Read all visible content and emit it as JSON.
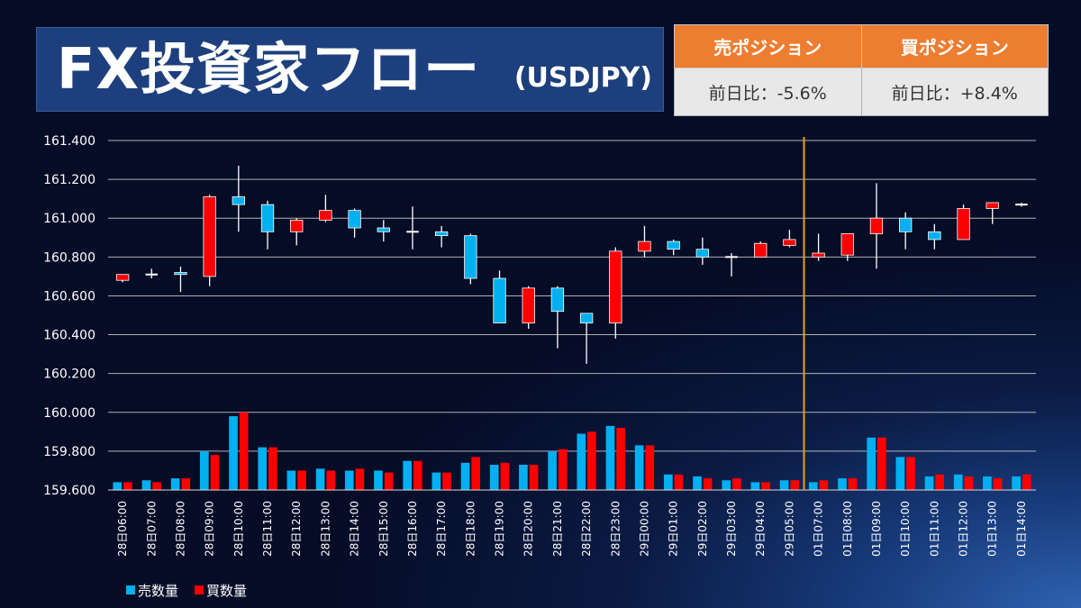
{
  "title": {
    "main": "FX投資家フロー",
    "sub": "(USDJPY)"
  },
  "position_table": {
    "headers": [
      "売ポジション",
      "買ポジション"
    ],
    "values": [
      "前日比：-5.6%",
      "前日比：+8.4%"
    ]
  },
  "colors": {
    "up": "#ff0000",
    "down": "#00b0f0",
    "sell_volume": "#00b0f0",
    "buy_volume": "#ff0000",
    "divider": "#e3a412",
    "grid": "#d9d9d9",
    "header_bg": "#ed7d31"
  },
  "chart_data": {
    "type": "candlestick+bar",
    "ylim": [
      159.6,
      161.4
    ],
    "yticks": [
      "161.400",
      "161.200",
      "161.000",
      "160.800",
      "160.600",
      "160.400",
      "160.200",
      "160.000",
      "159.800",
      "159.600"
    ],
    "grid": true,
    "legend_position": "bottom-left",
    "divider_after_category": "29日05:00",
    "categories": [
      "28日06:00",
      "28日07:00",
      "28日08:00",
      "28日09:00",
      "28日10:00",
      "28日11:00",
      "28日12:00",
      "28日13:00",
      "28日14:00",
      "28日15:00",
      "28日16:00",
      "28日17:00",
      "28日18:00",
      "28日19:00",
      "28日20:00",
      "28日21:00",
      "28日22:00",
      "28日23:00",
      "29日00:00",
      "29日01:00",
      "29日02:00",
      "29日03:00",
      "29日04:00",
      "29日05:00",
      "01日07:00",
      "01日08:00",
      "01日09:00",
      "01日10:00",
      "01日11:00",
      "01日12:00",
      "01日13:00",
      "01日14:00"
    ],
    "candles": [
      {
        "o": 160.68,
        "h": 160.71,
        "l": 160.67,
        "c": 160.71
      },
      {
        "o": 160.71,
        "h": 160.74,
        "l": 160.69,
        "c": 160.71
      },
      {
        "o": 160.72,
        "h": 160.75,
        "l": 160.62,
        "c": 160.71
      },
      {
        "o": 160.7,
        "h": 161.12,
        "l": 160.65,
        "c": 161.11
      },
      {
        "o": 161.11,
        "h": 161.27,
        "l": 160.93,
        "c": 161.07
      },
      {
        "o": 161.07,
        "h": 161.09,
        "l": 160.84,
        "c": 160.93
      },
      {
        "o": 160.93,
        "h": 161.0,
        "l": 160.86,
        "c": 160.99
      },
      {
        "o": 160.99,
        "h": 161.12,
        "l": 160.98,
        "c": 161.04
      },
      {
        "o": 161.04,
        "h": 161.05,
        "l": 160.9,
        "c": 160.95
      },
      {
        "o": 160.95,
        "h": 160.99,
        "l": 160.88,
        "c": 160.93
      },
      {
        "o": 160.93,
        "h": 161.06,
        "l": 160.84,
        "c": 160.93
      },
      {
        "o": 160.93,
        "h": 160.96,
        "l": 160.85,
        "c": 160.91
      },
      {
        "o": 160.91,
        "h": 160.92,
        "l": 160.66,
        "c": 160.69
      },
      {
        "o": 160.69,
        "h": 160.73,
        "l": 160.46,
        "c": 160.46
      },
      {
        "o": 160.46,
        "h": 160.65,
        "l": 160.43,
        "c": 160.64
      },
      {
        "o": 160.64,
        "h": 160.65,
        "l": 160.33,
        "c": 160.52
      },
      {
        "o": 160.51,
        "h": 160.51,
        "l": 160.25,
        "c": 160.46
      },
      {
        "o": 160.46,
        "h": 160.85,
        "l": 160.38,
        "c": 160.83
      },
      {
        "o": 160.83,
        "h": 160.96,
        "l": 160.8,
        "c": 160.88
      },
      {
        "o": 160.88,
        "h": 160.89,
        "l": 160.81,
        "c": 160.84
      },
      {
        "o": 160.84,
        "h": 160.9,
        "l": 160.76,
        "c": 160.8
      },
      {
        "o": 160.8,
        "h": 160.82,
        "l": 160.7,
        "c": 160.8
      },
      {
        "o": 160.8,
        "h": 160.88,
        "l": 160.8,
        "c": 160.87
      },
      {
        "o": 160.86,
        "h": 160.94,
        "l": 160.85,
        "c": 160.89
      },
      {
        "o": 160.8,
        "h": 160.92,
        "l": 160.78,
        "c": 160.82
      },
      {
        "o": 160.81,
        "h": 160.92,
        "l": 160.78,
        "c": 160.92
      },
      {
        "o": 160.92,
        "h": 161.18,
        "l": 160.74,
        "c": 161.0
      },
      {
        "o": 161.0,
        "h": 161.03,
        "l": 160.84,
        "c": 160.93
      },
      {
        "o": 160.93,
        "h": 160.97,
        "l": 160.84,
        "c": 160.89
      },
      {
        "o": 160.89,
        "h": 161.07,
        "l": 160.89,
        "c": 161.05
      },
      {
        "o": 161.05,
        "h": 161.08,
        "l": 160.97,
        "c": 161.08
      },
      {
        "o": 161.07,
        "h": 161.08,
        "l": 161.06,
        "c": 161.07
      }
    ],
    "series": [
      {
        "name": "売数量",
        "values": [
          159.64,
          159.65,
          159.66,
          159.8,
          159.98,
          159.82,
          159.7,
          159.71,
          159.7,
          159.7,
          159.75,
          159.69,
          159.74,
          159.73,
          159.73,
          159.8,
          159.89,
          159.93,
          159.83,
          159.68,
          159.67,
          159.65,
          159.64,
          159.65,
          159.64,
          159.66,
          159.87,
          159.77,
          159.67,
          159.68,
          159.67,
          159.67
        ]
      },
      {
        "name": "買数量",
        "values": [
          159.64,
          159.64,
          159.66,
          159.78,
          160.0,
          159.82,
          159.7,
          159.7,
          159.71,
          159.69,
          159.75,
          159.69,
          159.77,
          159.74,
          159.73,
          159.81,
          159.9,
          159.92,
          159.83,
          159.68,
          159.66,
          159.66,
          159.64,
          159.65,
          159.65,
          159.66,
          159.87,
          159.77,
          159.68,
          159.67,
          159.66,
          159.68
        ]
      }
    ]
  }
}
